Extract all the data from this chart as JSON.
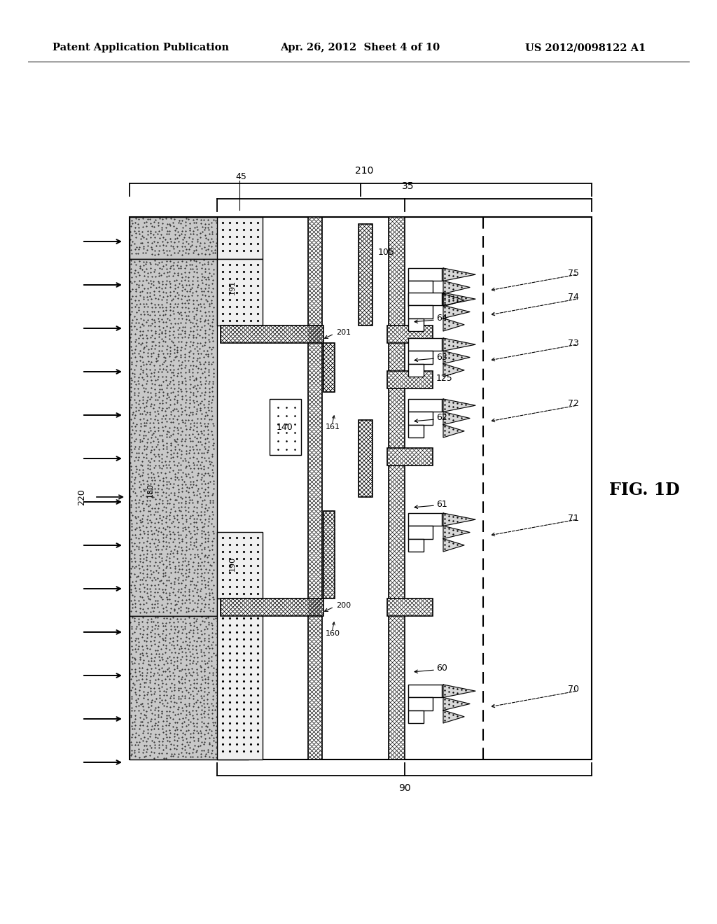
{
  "header_left": "Patent Application Publication",
  "header_center": "Apr. 26, 2012  Sheet 4 of 10",
  "header_right": "US 2012/0098122 A1",
  "fig_label": "FIG. 1D",
  "bg": "#ffffff",
  "labels": {
    "210": "210",
    "35": "35",
    "45": "45",
    "90": "90",
    "220": "220",
    "180": "180",
    "140": "140",
    "191": "191",
    "201": "201",
    "161": "161",
    "105": "105",
    "125": "125",
    "64": "64",
    "63": "63",
    "62": "62",
    "61": "61",
    "60": "60",
    "75": "75",
    "74": "74",
    "73": "73",
    "72": "72",
    "71": "71",
    "70": "70",
    "190": "190",
    "200": "200",
    "160": "160"
  }
}
